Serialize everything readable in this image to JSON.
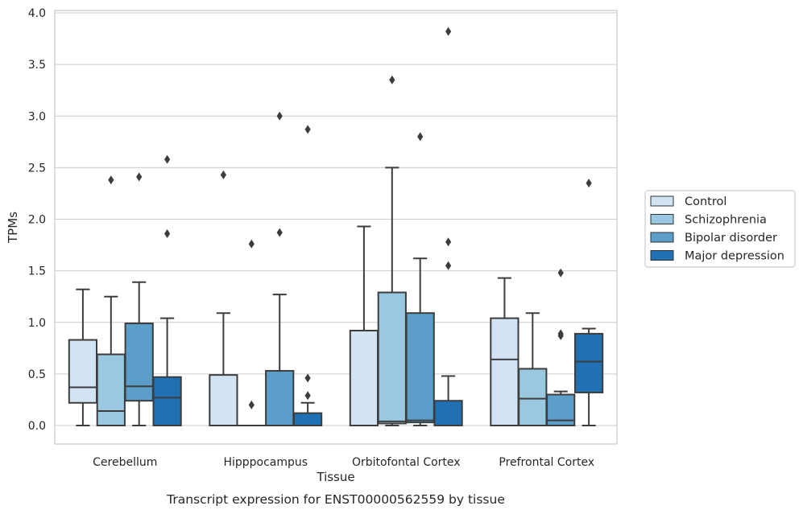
{
  "chart_data": {
    "type": "box",
    "caption": "Transcript expression for ENST00000562559 by tissue",
    "xlabel": "Tissue",
    "ylabel": "TPMs",
    "ylim": [
      -0.18,
      4.02
    ],
    "yticks": [
      0.0,
      0.5,
      1.0,
      1.5,
      2.0,
      2.5,
      3.0,
      3.5,
      4.0
    ],
    "ytick_labels": [
      "0.0",
      "0.5",
      "1.0",
      "1.5",
      "2.0",
      "2.5",
      "3.0",
      "3.5",
      "4.0"
    ],
    "grid": "horizontal",
    "legend_position": "right",
    "categories": [
      "Cerebellum",
      "Hipppocampus",
      "Orbitofontal Cortex",
      "Prefrontal Cortex"
    ],
    "series": [
      {
        "name": "Control",
        "color": "#d2e3f3",
        "boxes": [
          {
            "whislo": 0.0,
            "q1": 0.22,
            "med": 0.37,
            "q3": 0.83,
            "whishi": 1.32,
            "fliers": []
          },
          {
            "whislo": 0.0,
            "q1": 0.0,
            "med": 0.0,
            "q3": 0.49,
            "whishi": 1.09,
            "fliers": [
              2.43
            ]
          },
          {
            "whislo": 0.0,
            "q1": 0.0,
            "med": 0.0,
            "q3": 0.92,
            "whishi": 1.93,
            "fliers": []
          },
          {
            "whislo": 0.0,
            "q1": 0.0,
            "med": 0.64,
            "q3": 1.04,
            "whishi": 1.43,
            "fliers": []
          }
        ]
      },
      {
        "name": "Schizophrenia",
        "color": "#9ac8e0",
        "boxes": [
          {
            "whislo": 0.0,
            "q1": 0.0,
            "med": 0.14,
            "q3": 0.69,
            "whishi": 1.25,
            "fliers": [
              2.38
            ]
          },
          {
            "whislo": 0.0,
            "q1": 0.0,
            "med": 0.0,
            "q3": 0.0,
            "whishi": 0.0,
            "fliers": [
              0.2,
              1.76
            ]
          },
          {
            "whislo": 0.0,
            "q1": 0.02,
            "med": 0.04,
            "q3": 1.29,
            "whishi": 2.5,
            "fliers": [
              3.35
            ]
          },
          {
            "whislo": 0.0,
            "q1": 0.0,
            "med": 0.26,
            "q3": 0.55,
            "whishi": 1.09,
            "fliers": []
          }
        ]
      },
      {
        "name": "Bipolar disorder",
        "color": "#5a9ec9",
        "boxes": [
          {
            "whislo": 0.0,
            "q1": 0.24,
            "med": 0.38,
            "q3": 0.99,
            "whishi": 1.39,
            "fliers": [
              2.41
            ]
          },
          {
            "whislo": 0.0,
            "q1": 0.0,
            "med": 0.0,
            "q3": 0.53,
            "whishi": 1.27,
            "fliers": [
              1.87,
              3.0
            ]
          },
          {
            "whislo": 0.0,
            "q1": 0.03,
            "med": 0.05,
            "q3": 1.09,
            "whishi": 1.62,
            "fliers": [
              2.8
            ]
          },
          {
            "whislo": 0.0,
            "q1": 0.0,
            "med": 0.05,
            "q3": 0.3,
            "whishi": 0.33,
            "fliers": [
              0.87,
              0.89,
              1.48
            ]
          }
        ]
      },
      {
        "name": "Major depression",
        "color": "#2070b4",
        "boxes": [
          {
            "whislo": 0.0,
            "q1": 0.0,
            "med": 0.27,
            "q3": 0.47,
            "whishi": 1.04,
            "fliers": [
              1.86,
              2.58
            ]
          },
          {
            "whislo": 0.0,
            "q1": 0.0,
            "med": 0.0,
            "q3": 0.12,
            "whishi": 0.22,
            "fliers": [
              0.29,
              0.46,
              2.87
            ]
          },
          {
            "whislo": 0.0,
            "q1": 0.0,
            "med": 0.0,
            "q3": 0.24,
            "whishi": 0.48,
            "fliers": [
              1.55,
              1.78,
              3.82
            ]
          },
          {
            "whislo": 0.0,
            "q1": 0.32,
            "med": 0.62,
            "q3": 0.89,
            "whishi": 0.94,
            "fliers": [
              2.35
            ]
          }
        ]
      }
    ]
  }
}
